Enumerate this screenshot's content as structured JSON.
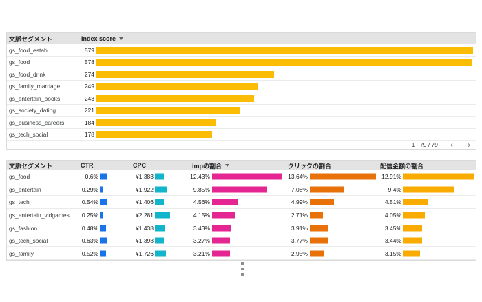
{
  "colors": {
    "index_bar": "#FBBC04",
    "ctr_bar": "#1A73E8",
    "cpc_bar": "#12B5CB",
    "imp_bar": "#E52592",
    "click_bar": "#E8710A",
    "cost_bar": "#F9AB00",
    "header_bg": "#E3E3E3"
  },
  "top_table": {
    "header": {
      "segment": "文脈セグメント",
      "metric": "Index score"
    },
    "value_max": 579,
    "rows": [
      {
        "segment": "gs_food_estab",
        "value": 579
      },
      {
        "segment": "gs_food",
        "value": 578
      },
      {
        "segment": "gs_food_drink",
        "value": 274
      },
      {
        "segment": "gs_family_marriage",
        "value": 249
      },
      {
        "segment": "gs_entertain_books",
        "value": 243
      },
      {
        "segment": "gs_society_dating",
        "value": 221
      },
      {
        "segment": "gs_business_careers",
        "value": 184
      },
      {
        "segment": "gs_tech_social",
        "value": 178
      }
    ],
    "pager": {
      "range_label": "1 - 79 / 79",
      "prev_icon": "‹",
      "next_icon": "›"
    }
  },
  "bottom_table": {
    "header": {
      "segment": "文脈セグメント",
      "ctr": "CTR",
      "cpc": "CPC",
      "imp": "impの割合",
      "click": "クリックの割合",
      "cost": "配信金額の割合"
    },
    "rows": [
      {
        "segment": "gs_food",
        "ctr": {
          "label": "0.6%",
          "v": 0.6
        },
        "cpc": {
          "label": "¥1,383",
          "v": 1383
        },
        "imp": {
          "label": "12.43%",
          "v": 12.43
        },
        "click": {
          "label": "13.64%",
          "v": 13.64
        },
        "cost": {
          "label": "12.91%",
          "v": 12.91
        }
      },
      {
        "segment": "gs_entertain",
        "ctr": {
          "label": "0.29%",
          "v": 0.29
        },
        "cpc": {
          "label": "¥1,922",
          "v": 1922
        },
        "imp": {
          "label": "9.85%",
          "v": 9.85
        },
        "click": {
          "label": "7.08%",
          "v": 7.08
        },
        "cost": {
          "label": "9.4%",
          "v": 9.4
        }
      },
      {
        "segment": "gs_tech",
        "ctr": {
          "label": "0.54%",
          "v": 0.54
        },
        "cpc": {
          "label": "¥1,406",
          "v": 1406
        },
        "imp": {
          "label": "4.56%",
          "v": 4.56
        },
        "click": {
          "label": "4.99%",
          "v": 4.99
        },
        "cost": {
          "label": "4.51%",
          "v": 4.51
        }
      },
      {
        "segment": "gs_entertain_vidgames",
        "ctr": {
          "label": "0.25%",
          "v": 0.25
        },
        "cpc": {
          "label": "¥2,281",
          "v": 2281
        },
        "imp": {
          "label": "4.15%",
          "v": 4.15
        },
        "click": {
          "label": "2.71%",
          "v": 2.71
        },
        "cost": {
          "label": "4.05%",
          "v": 4.05
        }
      },
      {
        "segment": "gs_fashion",
        "ctr": {
          "label": "0.48%",
          "v": 0.48
        },
        "cpc": {
          "label": "¥1,438",
          "v": 1438
        },
        "imp": {
          "label": "3.43%",
          "v": 3.43
        },
        "click": {
          "label": "3.91%",
          "v": 3.91
        },
        "cost": {
          "label": "3.45%",
          "v": 3.45
        }
      },
      {
        "segment": "gs_tech_social",
        "ctr": {
          "label": "0.63%",
          "v": 0.63
        },
        "cpc": {
          "label": "¥1,398",
          "v": 1398
        },
        "imp": {
          "label": "3.27%",
          "v": 3.27
        },
        "click": {
          "label": "3.77%",
          "v": 3.77
        },
        "cost": {
          "label": "3.44%",
          "v": 3.44
        }
      },
      {
        "segment": "gs_family",
        "ctr": {
          "label": "0.52%",
          "v": 0.52
        },
        "cpc": {
          "label": "¥1,726",
          "v": 1726
        },
        "imp": {
          "label": "3.21%",
          "v": 3.21
        },
        "click": {
          "label": "2.95%",
          "v": 2.95
        },
        "cost": {
          "label": "3.15%",
          "v": 3.15
        }
      }
    ]
  },
  "chart_data": [
    {
      "type": "bar",
      "orientation": "horizontal",
      "title": "Index score by 文脈セグメント",
      "categories": [
        "gs_food_estab",
        "gs_food",
        "gs_food_drink",
        "gs_family_marriage",
        "gs_entertain_books",
        "gs_society_dating",
        "gs_business_careers",
        "gs_tech_social"
      ],
      "values": [
        579,
        578,
        274,
        249,
        243,
        221,
        184,
        178
      ],
      "xlim": [
        0,
        579
      ],
      "bar_color": "#FBBC04",
      "sorted_by": "Index score",
      "pagination": "1 - 79 / 79"
    },
    {
      "type": "table",
      "title": "文脈セグメント metrics",
      "categories": [
        "gs_food",
        "gs_entertain",
        "gs_tech",
        "gs_entertain_vidgames",
        "gs_fashion",
        "gs_tech_social",
        "gs_family"
      ],
      "series": [
        {
          "name": "CTR",
          "unit": "%",
          "color": "#1A73E8",
          "values": [
            0.6,
            0.29,
            0.54,
            0.25,
            0.48,
            0.63,
            0.52
          ]
        },
        {
          "name": "CPC",
          "unit": "¥",
          "color": "#12B5CB",
          "values": [
            1383,
            1922,
            1406,
            2281,
            1438,
            1398,
            1726
          ]
        },
        {
          "name": "impの割合",
          "unit": "%",
          "color": "#E52592",
          "values": [
            12.43,
            9.85,
            4.56,
            4.15,
            3.43,
            3.27,
            3.21
          ]
        },
        {
          "name": "クリックの割合",
          "unit": "%",
          "color": "#E8710A",
          "values": [
            13.64,
            7.08,
            4.99,
            2.71,
            3.91,
            3.77,
            2.95
          ]
        },
        {
          "name": "配信金額の割合",
          "unit": "%",
          "color": "#F9AB00",
          "values": [
            12.91,
            9.4,
            4.51,
            4.05,
            3.45,
            3.44,
            3.15
          ]
        }
      ],
      "sorted_by": "impの割合"
    }
  ]
}
